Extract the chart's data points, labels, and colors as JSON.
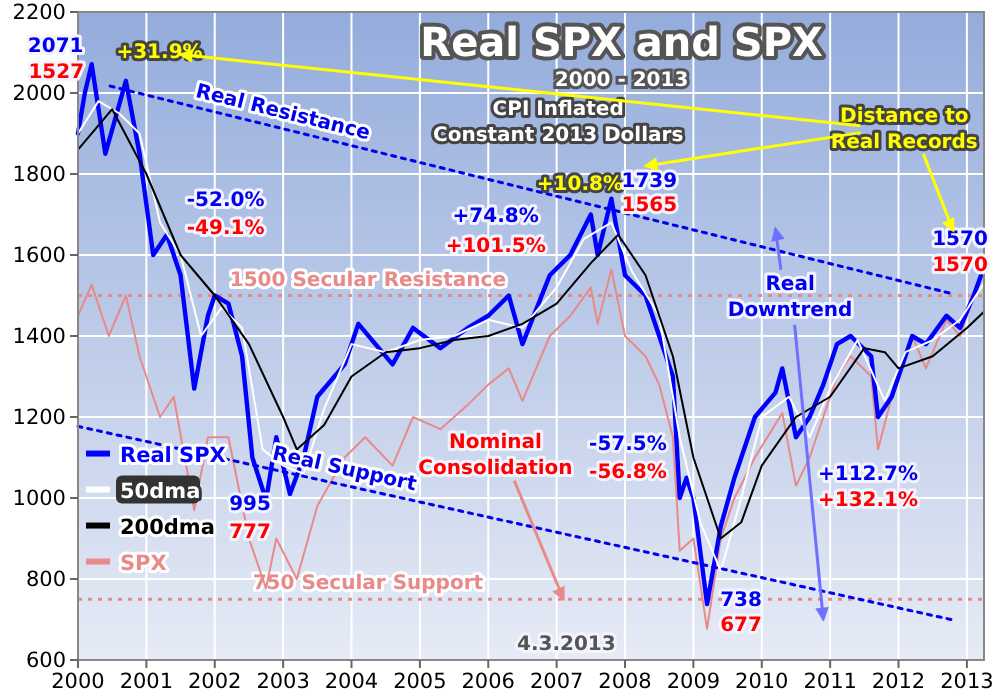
{
  "chart_data": {
    "type": "line",
    "title": "Real SPX and SPX",
    "subtitle": "2000 - 2013",
    "xlim": [
      2000,
      2013.25
    ],
    "xticks": [
      2000,
      2001,
      2002,
      2003,
      2004,
      2005,
      2006,
      2007,
      2008,
      2009,
      2010,
      2011,
      2012,
      2013
    ],
    "ylim": [
      600,
      2200
    ],
    "yticks": [
      600,
      800,
      1000,
      1200,
      1400,
      1600,
      1800,
      2000,
      2200
    ],
    "grid": true,
    "legend": "left",
    "series": [
      {
        "name": "SPX",
        "color": "#e88a8a",
        "x": [
          2000,
          2000.2,
          2000.45,
          2000.7,
          2000.9,
          2001.2,
          2001.4,
          2001.7,
          2001.9,
          2002.2,
          2002.5,
          2002.75,
          2002.9,
          2003.2,
          2003.5,
          2003.9,
          2004.2,
          2004.6,
          2004.9,
          2005.3,
          2005.7,
          2006,
          2006.3,
          2006.5,
          2006.9,
          2007.2,
          2007.5,
          2007.6,
          2007.8,
          2008,
          2008.3,
          2008.5,
          2008.7,
          2008.8,
          2009,
          2009.2,
          2009.4,
          2009.6,
          2009.9,
          2010.3,
          2010.5,
          2010.7,
          2010.9,
          2011.1,
          2011.3,
          2011.6,
          2011.7,
          2011.9,
          2012.2,
          2012.4,
          2012.7,
          2012.9,
          2013.1,
          2013.25
        ],
        "values": [
          1450,
          1527,
          1400,
          1500,
          1350,
          1200,
          1250,
          970,
          1150,
          1150,
          900,
          777,
          900,
          800,
          980,
          1100,
          1150,
          1080,
          1200,
          1170,
          1230,
          1280,
          1320,
          1240,
          1400,
          1450,
          1520,
          1430,
          1565,
          1400,
          1350,
          1280,
          1150,
          870,
          900,
          677,
          900,
          1000,
          1100,
          1210,
          1030,
          1100,
          1200,
          1300,
          1350,
          1300,
          1120,
          1250,
          1400,
          1320,
          1440,
          1400,
          1500,
          1570
        ]
      },
      {
        "name": "Real SPX",
        "color": "#0000ff",
        "x": [
          2000,
          2000.1,
          2000.2,
          2000.4,
          2000.7,
          2000.9,
          2001.1,
          2001.3,
          2001.5,
          2001.7,
          2001.9,
          2002,
          2002.2,
          2002.4,
          2002.55,
          2002.75,
          2002.9,
          2003.1,
          2003.3,
          2003.5,
          2003.9,
          2004.1,
          2004.6,
          2004.9,
          2005.3,
          2005.7,
          2006,
          2006.3,
          2006.5,
          2006.9,
          2007.2,
          2007.5,
          2007.6,
          2007.8,
          2008,
          2008.3,
          2008.5,
          2008.7,
          2008.8,
          2008.9,
          2009,
          2009.2,
          2009.4,
          2009.6,
          2009.9,
          2010.2,
          2010.3,
          2010.5,
          2010.7,
          2010.9,
          2011.1,
          2011.3,
          2011.6,
          2011.7,
          2011.9,
          2012.2,
          2012.4,
          2012.7,
          2012.9,
          2013.1,
          2013.25
        ],
        "values": [
          1900,
          2000,
          2071,
          1850,
          2030,
          1850,
          1600,
          1650,
          1550,
          1270,
          1450,
          1500,
          1480,
          1350,
          1100,
          995,
          1150,
          1010,
          1100,
          1250,
          1330,
          1430,
          1330,
          1420,
          1370,
          1420,
          1450,
          1500,
          1380,
          1550,
          1600,
          1700,
          1600,
          1739,
          1550,
          1500,
          1400,
          1300,
          1000,
          1050,
          1000,
          738,
          930,
          1050,
          1200,
          1260,
          1320,
          1150,
          1200,
          1280,
          1380,
          1400,
          1350,
          1200,
          1250,
          1400,
          1380,
          1450,
          1420,
          1500,
          1570
        ]
      },
      {
        "name": "50dma",
        "color": "#ffffff",
        "x": [
          2000,
          2000.3,
          2000.6,
          2000.9,
          2001.2,
          2001.5,
          2001.8,
          2002.1,
          2002.4,
          2002.7,
          2003,
          2003.3,
          2003.6,
          2004,
          2004.5,
          2005,
          2005.5,
          2006,
          2006.5,
          2007,
          2007.4,
          2007.8,
          2008.1,
          2008.5,
          2008.8,
          2009.1,
          2009.4,
          2009.7,
          2010,
          2010.4,
          2010.7,
          2011,
          2011.4,
          2011.8,
          2012.1,
          2012.5,
          2012.9,
          2013.25
        ],
        "values": [
          1900,
          1980,
          1950,
          1900,
          1680,
          1600,
          1400,
          1470,
          1420,
          1120,
          1080,
          1060,
          1220,
          1380,
          1360,
          1390,
          1400,
          1440,
          1420,
          1520,
          1640,
          1680,
          1560,
          1450,
          1150,
          940,
          820,
          1000,
          1200,
          1250,
          1150,
          1270,
          1390,
          1240,
          1360,
          1390,
          1440,
          1530
        ]
      },
      {
        "name": "200dma",
        "color": "#000000",
        "x": [
          2000,
          2000.5,
          2001,
          2001.5,
          2002,
          2002.5,
          2003,
          2003.2,
          2003.6,
          2004,
          2004.5,
          2005,
          2005.5,
          2006,
          2006.5,
          2007,
          2007.5,
          2007.9,
          2008.3,
          2008.7,
          2009,
          2009.4,
          2009.7,
          2010,
          2010.5,
          2011,
          2011.5,
          2011.8,
          2012,
          2012.5,
          2013,
          2013.25
        ],
        "values": [
          1860,
          1960,
          1800,
          1600,
          1500,
          1380,
          1200,
          1120,
          1180,
          1300,
          1360,
          1370,
          1390,
          1400,
          1430,
          1480,
          1580,
          1650,
          1550,
          1350,
          1100,
          900,
          940,
          1080,
          1200,
          1250,
          1370,
          1360,
          1320,
          1350,
          1420,
          1460
        ]
      },
      {
        "name": "Real Resistance",
        "color": "#0000ee",
        "line_style": "dotted",
        "x": [
          2000.47,
          2012.82
        ],
        "values": [
          2017,
          1503
        ]
      },
      {
        "name": "Real Support",
        "color": "#0000ee",
        "line_style": "dotted",
        "x": [
          2000,
          2012.82
        ],
        "values": [
          1177,
          698
        ]
      }
    ],
    "ref_lines": [
      {
        "axis": "y",
        "value": 1500,
        "label": "1500 Secular Resistance",
        "color": "#e88a8a",
        "line_style": "dotted"
      },
      {
        "axis": "y",
        "value": 750,
        "label": "750 Secular Support",
        "color": "#e88a8a",
        "line_style": "dotted"
      }
    ],
    "annotations": [
      {
        "text": "2071",
        "x": 2000.2,
        "y": 2071
      },
      "1527",
      "+31.9%",
      "CPI Inflated\nConstant 2013 Dollars",
      "-52.0%",
      "-49.1%",
      "+74.8%",
      "+101.5%",
      "+10.8%",
      {
        "text": "1739",
        "x": 2007.8,
        "y": 1739
      },
      {
        "text": "1565",
        "x": 2007.8,
        "y": 1565
      },
      "Distance to\nReal Records",
      {
        "text": "1570",
        "x": 2013.25,
        "y": 1570
      },
      {
        "text": "1570",
        "x": 2013.25,
        "y": 1570
      },
      "Real\nDowntrend",
      {
        "text": "995",
        "x": 2002.75,
        "y": 995
      },
      {
        "text": "777",
        "x": 2002.75,
        "y": 777
      },
      {
        "text": "Nominal\nConsolidation",
        "x": 2007.1,
        "y": 750
      },
      "-57.5%",
      "-56.8%",
      "+112.7%",
      "+132.1%",
      {
        "text": "738",
        "x": 2009.2,
        "y": 738
      },
      {
        "text": "677",
        "x": 2009.2,
        "y": 677
      },
      "4.3.2013"
    ]
  }
}
